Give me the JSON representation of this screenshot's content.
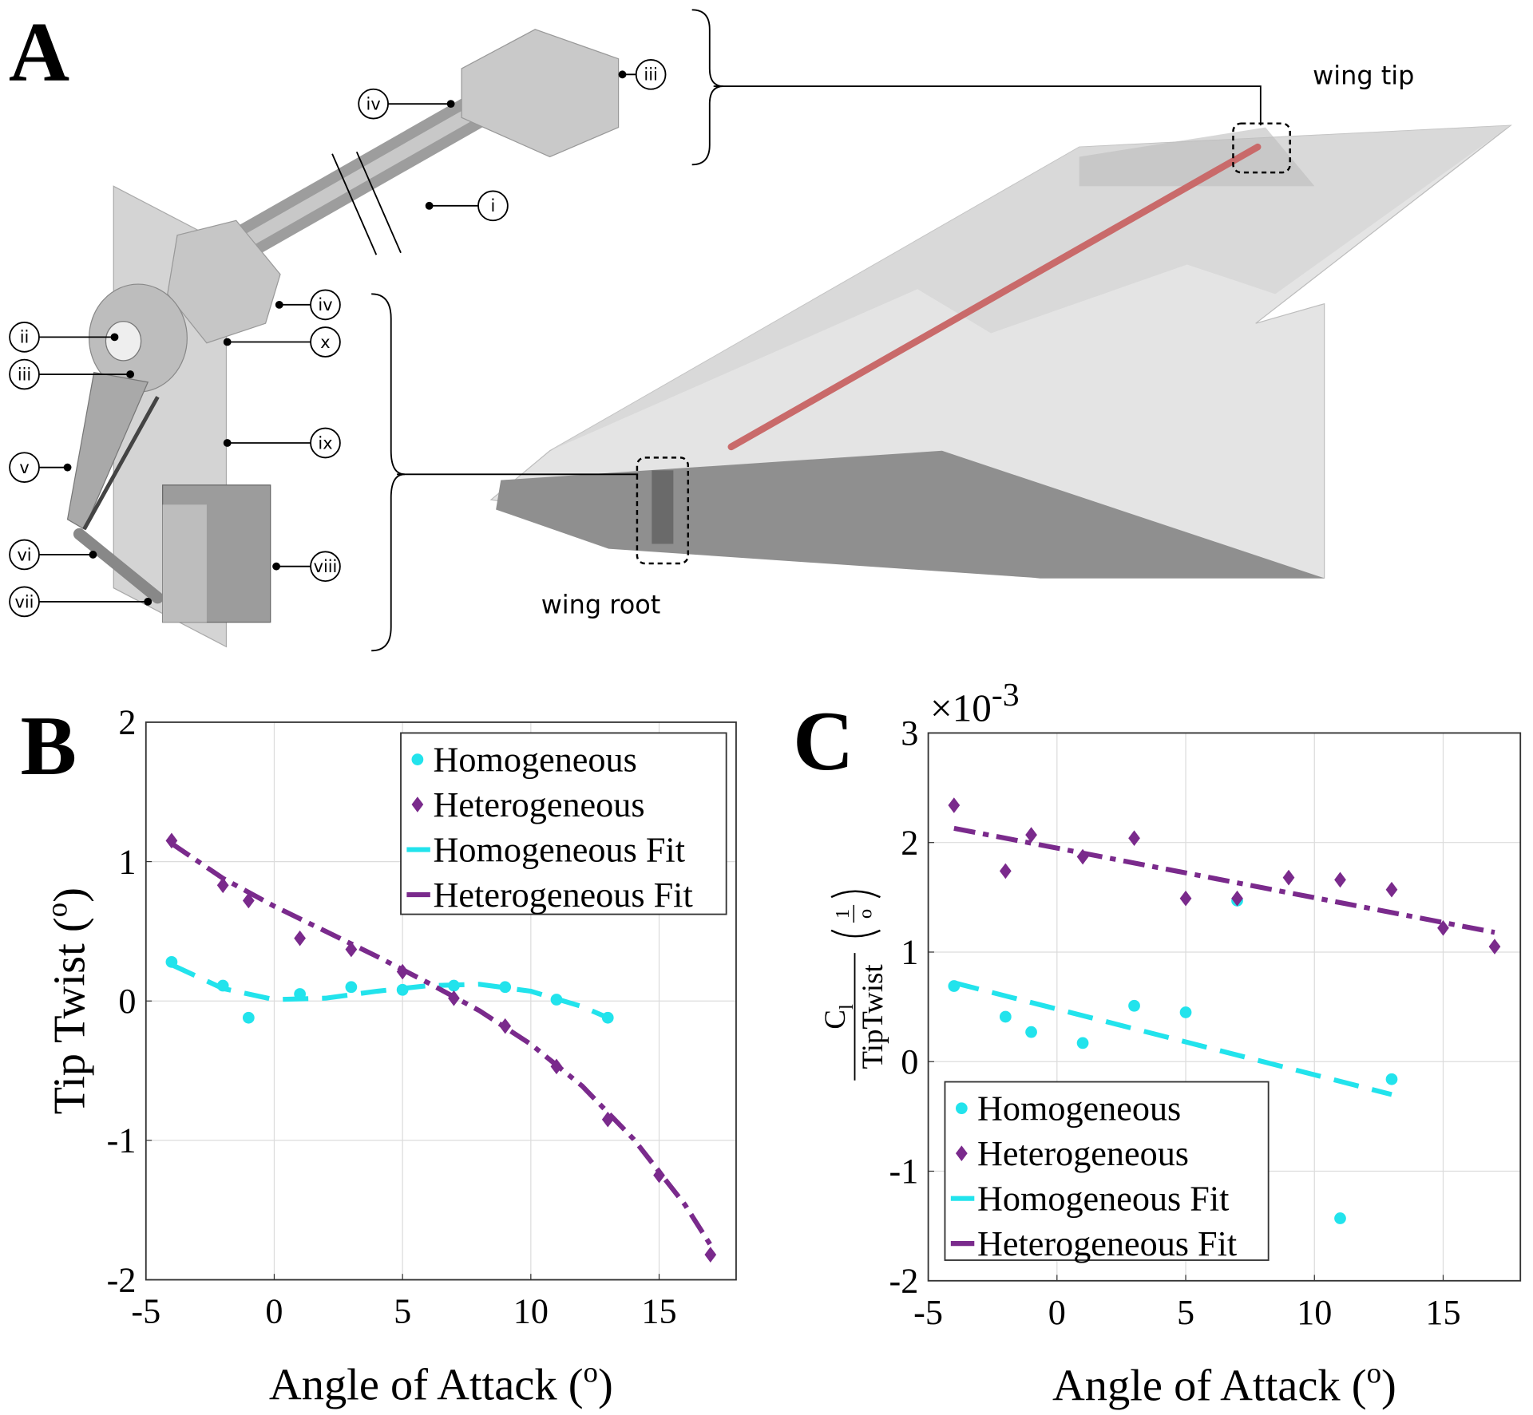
{
  "panel_a": {
    "letter": "A",
    "callouts": [
      "iii",
      "iv",
      "i",
      "iv",
      "ii",
      "x",
      "iii",
      "ix",
      "v",
      "vi",
      "viii",
      "vii"
    ],
    "wing_tip": "wing tip",
    "wing_root": "wing root"
  },
  "chart_data": [
    {
      "type": "scatter",
      "letter": "B",
      "xlabel": {
        "text": "Angle of Attack (",
        "sup": "o",
        "close": ")"
      },
      "ylabel": {
        "text": "Tip Twist (",
        "sup": "o",
        "close": ")"
      },
      "xlim": [
        -5,
        18
      ],
      "ylim": [
        -2,
        2
      ],
      "xticks": [
        -5,
        0,
        5,
        10,
        15
      ],
      "yticks": [
        -2,
        -1,
        0,
        1,
        2
      ],
      "grid": true,
      "legend": "upper-right",
      "series": [
        {
          "name": "Homogeneous",
          "color": "#22e3ec",
          "marker": "circle",
          "x": [
            -4,
            -2,
            -1,
            1,
            3,
            5,
            7,
            9,
            11,
            13
          ],
          "values": [
            0.28,
            0.11,
            -0.12,
            0.05,
            0.1,
            0.08,
            0.11,
            0.1,
            0.01,
            -0.12
          ]
        },
        {
          "name": "Heterogeneous",
          "color": "#7a2a8c",
          "marker": "diamond",
          "x": [
            -4,
            -2,
            -1,
            1,
            3,
            5,
            7,
            9,
            11,
            13,
            15,
            17
          ],
          "values": [
            1.15,
            0.83,
            0.72,
            0.45,
            0.37,
            0.21,
            0.02,
            -0.18,
            -0.47,
            -0.85,
            -1.25,
            -1.82
          ]
        },
        {
          "name": "Homogeneous Fit",
          "color": "#22e3ec",
          "line": "dashed",
          "x": [
            -4,
            -2,
            0,
            2,
            4,
            6,
            8,
            10,
            12,
            13
          ],
          "values": [
            0.26,
            0.09,
            0.01,
            0.02,
            0.07,
            0.11,
            0.12,
            0.07,
            -0.04,
            -0.12
          ]
        },
        {
          "name": "Heterogeneous Fit",
          "color": "#7a2a8c",
          "line": "dashdot",
          "x": [
            -4,
            -2,
            0,
            2,
            4,
            6,
            8,
            10,
            12,
            14,
            16,
            17
          ],
          "values": [
            1.13,
            0.88,
            0.68,
            0.5,
            0.32,
            0.13,
            -0.07,
            -0.31,
            -0.61,
            -0.99,
            -1.46,
            -1.75
          ]
        }
      ]
    },
    {
      "type": "scatter",
      "letter": "C",
      "multiplier": {
        "base": "×10",
        "exp": "-3"
      },
      "xlabel": {
        "text": "Angle of Attack (",
        "sup": "o",
        "close": ")"
      },
      "ylabel": {
        "numerator": "C",
        "numerator_sub": "l",
        "denominator": "TipTwist",
        "unit_num": "1",
        "unit_den": "o"
      },
      "xlim": [
        -5,
        18
      ],
      "ylim": [
        -2,
        3
      ],
      "xticks": [
        -5,
        0,
        5,
        10,
        15
      ],
      "yticks": [
        -2,
        -1,
        0,
        1,
        2,
        3
      ],
      "grid": true,
      "legend": "lower-left",
      "series": [
        {
          "name": "Homogeneous",
          "color": "#22e3ec",
          "marker": "circle",
          "x": [
            -4,
            -2,
            -1,
            1,
            3,
            5,
            7,
            11,
            13
          ],
          "values": [
            0.69,
            0.41,
            0.27,
            0.17,
            0.51,
            0.45,
            1.47,
            -1.43,
            -0.16
          ]
        },
        {
          "name": "Heterogeneous",
          "color": "#7a2a8c",
          "marker": "diamond",
          "x": [
            -4,
            -2,
            -1,
            1,
            3,
            5,
            7,
            9,
            11,
            13,
            15,
            17
          ],
          "values": [
            2.34,
            1.74,
            2.07,
            1.87,
            2.04,
            1.49,
            1.49,
            1.68,
            1.66,
            1.57,
            1.22,
            1.05
          ]
        },
        {
          "name": "Homogeneous Fit",
          "color": "#22e3ec",
          "line": "dashed",
          "x": [
            -4,
            13
          ],
          "values": [
            0.72,
            -0.3
          ]
        },
        {
          "name": "Heterogeneous Fit",
          "color": "#7a2a8c",
          "line": "dashdot",
          "x": [
            -4,
            17
          ],
          "values": [
            2.13,
            1.18
          ]
        }
      ]
    }
  ]
}
